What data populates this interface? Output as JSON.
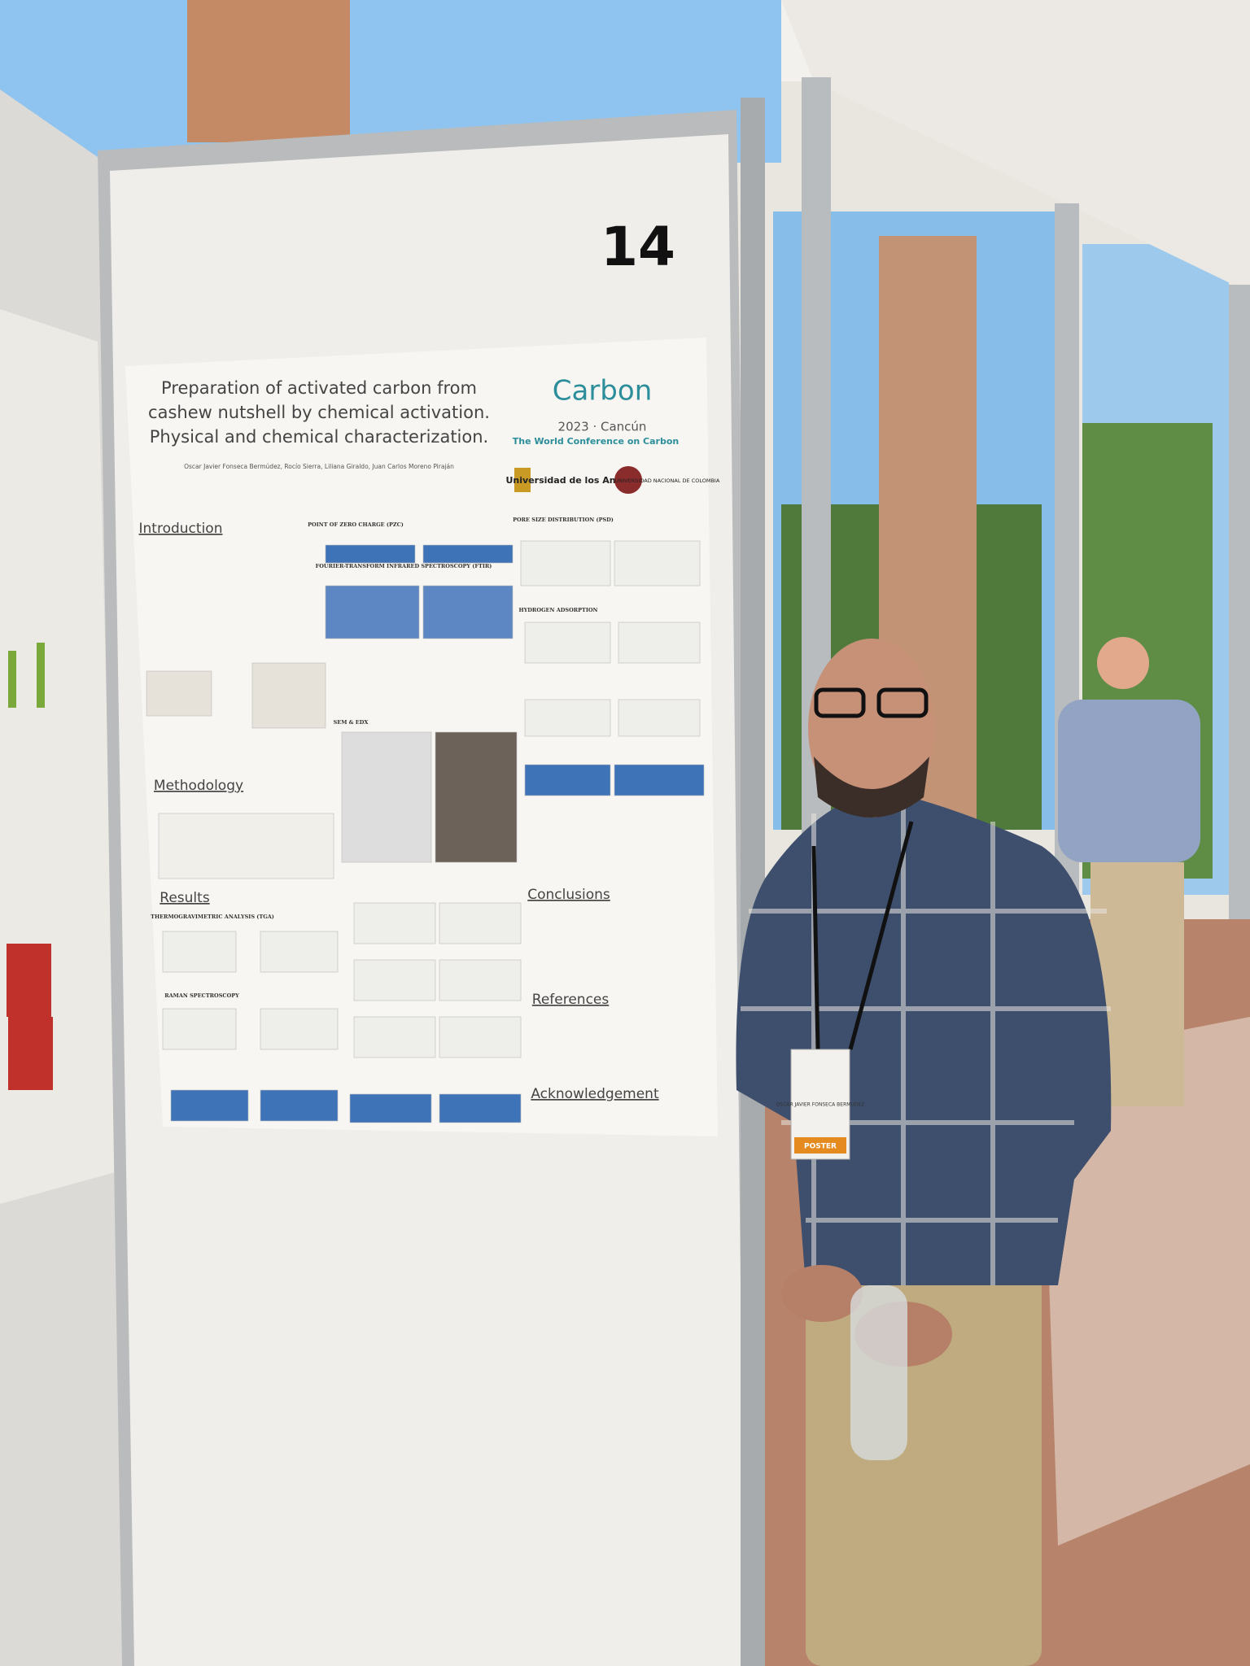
{
  "board_number": "14",
  "poster": {
    "title": [
      "Preparation of activated carbon from",
      "cashew nutshell by chemical activation.",
      "Physical and chemical characterization."
    ],
    "authors": "Oscar Javier Fonseca Bermúdez, Rocío Sierra, Liliana Giraldo, Juan Carlos Moreno Piraján",
    "conference": {
      "name": "Carbon",
      "year": "2023 · Cancún",
      "tagline": "The World Conference on Carbon"
    },
    "universities": [
      "Universidad de los Andes",
      "UNIVERSIDAD NACIONAL DE COLOMBIA"
    ],
    "sections": [
      "Introduction",
      "Methodology",
      "Results",
      "Conclusions",
      "References",
      "Acknowledgement"
    ],
    "subsections": [
      "POINT OF ZERO CHARGE (PZC)",
      "FOURIER-TRANSFORM INFRARED SPECTROSCOPY (FTIR)",
      "SEM & EDX",
      "PORE SIZE DISTRIBUTION (PSD)",
      "HYDROGEN ADSORPTION",
      "THERMOGRAVIMETRIC ANALYSIS (TGA)",
      "RAMAN SPECTROSCOPY"
    ]
  },
  "badge": {
    "name": "OSCAR JAVIER FONSECA BERMUDEZ",
    "role": "POSTER"
  }
}
